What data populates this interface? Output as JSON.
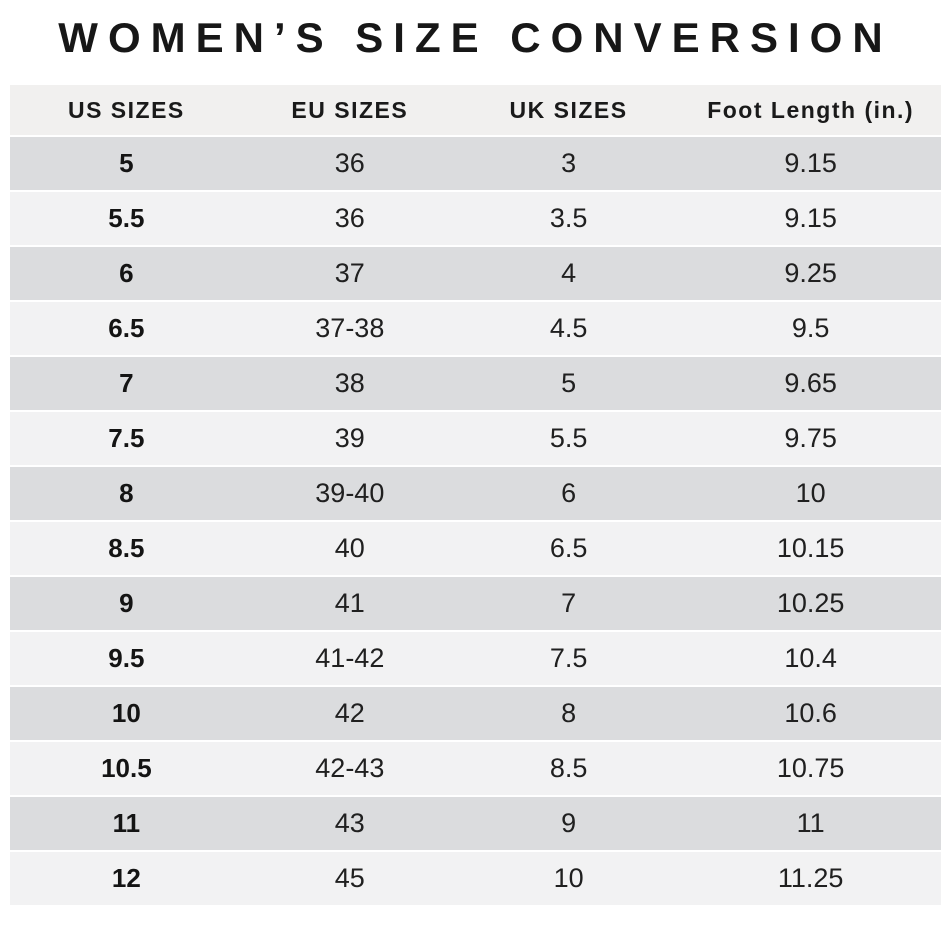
{
  "page": {
    "title": "WOMEN’S SIZE CONVERSION"
  },
  "table": {
    "headers": [
      "US SIZES",
      "EU SIZES",
      "UK SIZES",
      "Foot Length (in.)"
    ],
    "rows": [
      [
        "5",
        "36",
        "3",
        "9.15"
      ],
      [
        "5.5",
        "36",
        "3.5",
        "9.15"
      ],
      [
        "6",
        "37",
        "4",
        "9.25"
      ],
      [
        "6.5",
        "37-38",
        "4.5",
        "9.5"
      ],
      [
        "7",
        "38",
        "5",
        "9.65"
      ],
      [
        "7.5",
        "39",
        "5.5",
        "9.75"
      ],
      [
        "8",
        "39-40",
        "6",
        "10"
      ],
      [
        "8.5",
        "40",
        "6.5",
        "10.15"
      ],
      [
        "9",
        "41",
        "7",
        "10.25"
      ],
      [
        "9.5",
        "41-42",
        "7.5",
        "10.4"
      ],
      [
        "10",
        "42",
        "8",
        "10.6"
      ],
      [
        "10.5",
        "42-43",
        "8.5",
        "10.75"
      ],
      [
        "11",
        "43",
        "9",
        "11"
      ],
      [
        "12",
        "45",
        "10",
        "11.25"
      ]
    ]
  },
  "colors": {
    "background": "#ffffff",
    "header_row_bg": "#f1f0ef",
    "row_dark_bg": "#dbdcde",
    "row_light_bg": "#f2f2f3",
    "text": "#1c1c1c"
  }
}
